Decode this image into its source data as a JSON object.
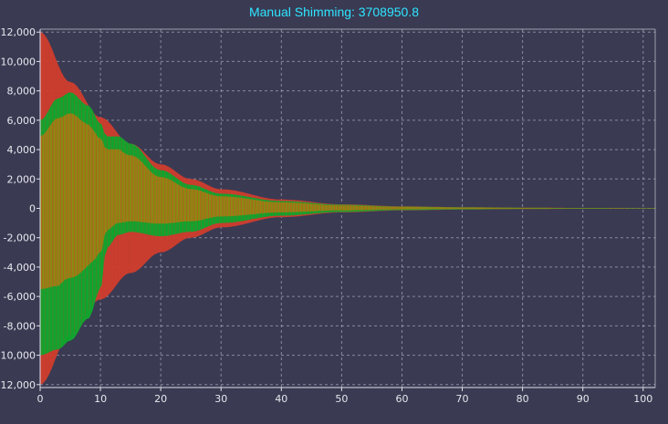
{
  "chart_data": {
    "type": "line",
    "title": "Manual Shimming: 3708950.8",
    "xlabel": "",
    "ylabel": "",
    "xlim": [
      0,
      102
    ],
    "ylim": [
      -12200,
      12200
    ],
    "x_ticks": [
      0,
      10,
      20,
      30,
      40,
      50,
      60,
      70,
      80,
      90,
      100
    ],
    "x_tick_labels": [
      "0",
      "10",
      "20",
      "30",
      "40",
      "50",
      "60",
      "70",
      "80",
      "90",
      "100"
    ],
    "y_ticks": [
      12000,
      10000,
      8000,
      6000,
      4000,
      2000,
      0,
      -2000,
      -4000,
      -6000,
      -8000,
      -10000,
      -12000
    ],
    "y_tick_labels": [
      "12,000",
      "10,000",
      "8,000",
      "6,000",
      "4,000",
      "2,000",
      "0",
      "-2,000",
      "-4,000",
      "-6,000",
      "-8,000",
      "-10,000",
      "-12,000"
    ],
    "grid": true,
    "legend": "none",
    "series": [
      {
        "color": "#d23c2e",
        "envelope_upper": [
          [
            0,
            12000
          ],
          [
            5,
            8600
          ],
          [
            10,
            6200
          ],
          [
            15,
            4400
          ],
          [
            20,
            3000
          ],
          [
            25,
            2000
          ],
          [
            30,
            1300
          ],
          [
            40,
            600
          ],
          [
            50,
            280
          ],
          [
            60,
            140
          ],
          [
            70,
            80
          ],
          [
            80,
            50
          ],
          [
            90,
            30
          ],
          [
            100,
            20
          ]
        ],
        "envelope_lower": [
          [
            0,
            -12000
          ],
          [
            5,
            -8600
          ],
          [
            10,
            -6200
          ],
          [
            15,
            -4400
          ],
          [
            20,
            -3000
          ],
          [
            25,
            -2000
          ],
          [
            30,
            -1300
          ],
          [
            40,
            -600
          ],
          [
            50,
            -280
          ],
          [
            60,
            -140
          ],
          [
            70,
            -80
          ],
          [
            80,
            -50
          ],
          [
            90,
            -30
          ],
          [
            100,
            -20
          ]
        ]
      },
      {
        "color": "#12a32e",
        "envelope_upper": [
          [
            0,
            6000
          ],
          [
            3,
            7500
          ],
          [
            5,
            7900
          ],
          [
            8,
            7000
          ],
          [
            10,
            5800
          ],
          [
            11,
            4900
          ],
          [
            13,
            4900
          ],
          [
            15,
            4400
          ],
          [
            20,
            2600
          ],
          [
            25,
            1600
          ],
          [
            30,
            1000
          ],
          [
            40,
            500
          ],
          [
            50,
            250
          ],
          [
            60,
            120
          ],
          [
            70,
            70
          ],
          [
            80,
            40
          ],
          [
            90,
            25
          ],
          [
            100,
            15
          ]
        ],
        "envelope_lower": [
          [
            0,
            -10000
          ],
          [
            3,
            -9600
          ],
          [
            5,
            -9000
          ],
          [
            8,
            -7500
          ],
          [
            10,
            -5500
          ],
          [
            11,
            -2700
          ],
          [
            13,
            -1800
          ],
          [
            15,
            -1600
          ],
          [
            20,
            -1900
          ],
          [
            25,
            -1600
          ],
          [
            30,
            -1000
          ],
          [
            40,
            -500
          ],
          [
            50,
            -250
          ],
          [
            60,
            -120
          ],
          [
            70,
            -70
          ],
          [
            80,
            -40
          ],
          [
            90,
            -25
          ],
          [
            100,
            -15
          ]
        ]
      }
    ],
    "overlap_color": "#8a8a12"
  }
}
